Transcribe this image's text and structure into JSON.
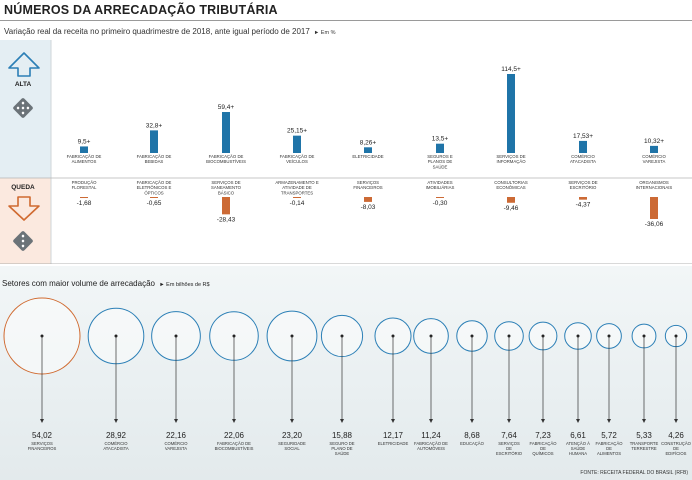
{
  "header": {
    "title": "NÚMEROS DA ARRECADAÇÃO TRIBUTÁRIA",
    "subtitle": "Variação real da receita no primeiro quadrimestre de 2018, ante igual período de 2017",
    "subtitle_unit": "► Em %"
  },
  "colors": {
    "up_accent": "#2b7fb6",
    "down_accent": "#d06a30",
    "bar_up": "#1f74a8",
    "bar_down": "#cc6a35",
    "alta_bg": "#e4eef3",
    "queda_bg": "#fbe9df"
  },
  "panel": {
    "alta_label": "ALTA",
    "queda_label": "QUEDA",
    "up_icon": "arrow-up-icon",
    "down_icon": "arrow-down-icon",
    "dice_icon": "dice-icon"
  },
  "chart_data": [
    {
      "type": "bar",
      "title": "Alta",
      "categories": [
        "FABRICAÇÃO DE ALIMENTOS",
        "FABRICAÇÃO DE BEBIDAS",
        "FABRICAÇÃO DE BIOCOMBUSTÍVEIS",
        "FABRICAÇÃO DE VEÍCULOS",
        "ELETRICIDADE",
        "SEGUROS E PLANOS DE SAÚDE",
        "SERVIÇOS DE INFORMAÇÃO",
        "COMÉRCIO ATACADISTA",
        "COMÉRCIO VAREJISTA"
      ],
      "values": [
        9.5,
        32.8,
        59.4,
        25.15,
        8.26,
        13.5,
        114.5,
        17.53,
        10.32
      ],
      "labels": [
        "9,5+",
        "32,8+",
        "59,4+",
        "25,15+",
        "8,26+",
        "13,5+",
        "114,5+",
        "17,53+",
        "10,32+"
      ],
      "ylabel": "%"
    },
    {
      "type": "bar",
      "title": "Queda",
      "categories": [
        "PRODUÇÃO FLORESTAL",
        "FABRICAÇÃO DE ELETRÔNICOS E ÓPTICOS",
        "SERVIÇOS DE SANEAMENTO BÁSICO",
        "ARMAZENAMENTO E ATIVIDADE DE TRANSPORTES",
        "SERVIÇOS FINANCEIROS",
        "ATIVIDADES IMOBILIÁRIAS",
        "CONSULTORIAS ECONÔMICAS",
        "SERVIÇOS DE ESCRITÓRIO",
        "ORGANISMOS INTERNACIONAIS"
      ],
      "values": [
        -1.68,
        -0.65,
        -28.43,
        -0.14,
        -8.03,
        -0.3,
        -9.46,
        -4.37,
        -36.06
      ],
      "labels": [
        "-1,68",
        "-0,65",
        "-28,43",
        "-0,14",
        "-8,03",
        "-0,30",
        "-9,46",
        "-4,37",
        "-36,06"
      ],
      "ylabel": "%"
    },
    {
      "type": "bubble",
      "title": "Setores com maior volume de arrecadação",
      "title_unit": "► Em bilhões de R$",
      "categories": [
        "SERVIÇOS FINANCEIROS",
        "COMÉRCIO ATACADISTA",
        "COMÉRCIO VAREJISTA",
        "FABRICAÇÃO DE BIOCOMBUSTÍVEIS",
        "SEGURIDADE SOCIAL",
        "SEGURO DE PLANO DE SAÚDE",
        "ELETRICIDADE",
        "FABRICAÇÃO DE AUTOMÓVEIS",
        "EDUCAÇÃO",
        "SERVIÇOS DE ESCRITÓRIO",
        "FABRICAÇÃO DE QUÍMICOS",
        "ATENÇÃO À SAÚDE HUMANA",
        "FABRICAÇÃO DE ALIMENTOS",
        "TRANSPORTE TERRESTRE",
        "CONSTRUÇÃO DE EDIFÍCIOS"
      ],
      "values": [
        54.02,
        28.92,
        22.16,
        22.06,
        23.2,
        15.88,
        12.17,
        11.24,
        8.68,
        7.64,
        7.23,
        6.61,
        5.72,
        5.33,
        4.26
      ],
      "labels": [
        "54,02",
        "28,92",
        "22,16",
        "22,06",
        "23,20",
        "15,88",
        "12,17",
        "11,24",
        "8,68",
        "7,64",
        "7,23",
        "6,61",
        "5,72",
        "5,33",
        "4,26"
      ]
    }
  ],
  "footer": {
    "source": "FONTE: RECEITA FEDERAL DO BRASIL (RFB)"
  }
}
